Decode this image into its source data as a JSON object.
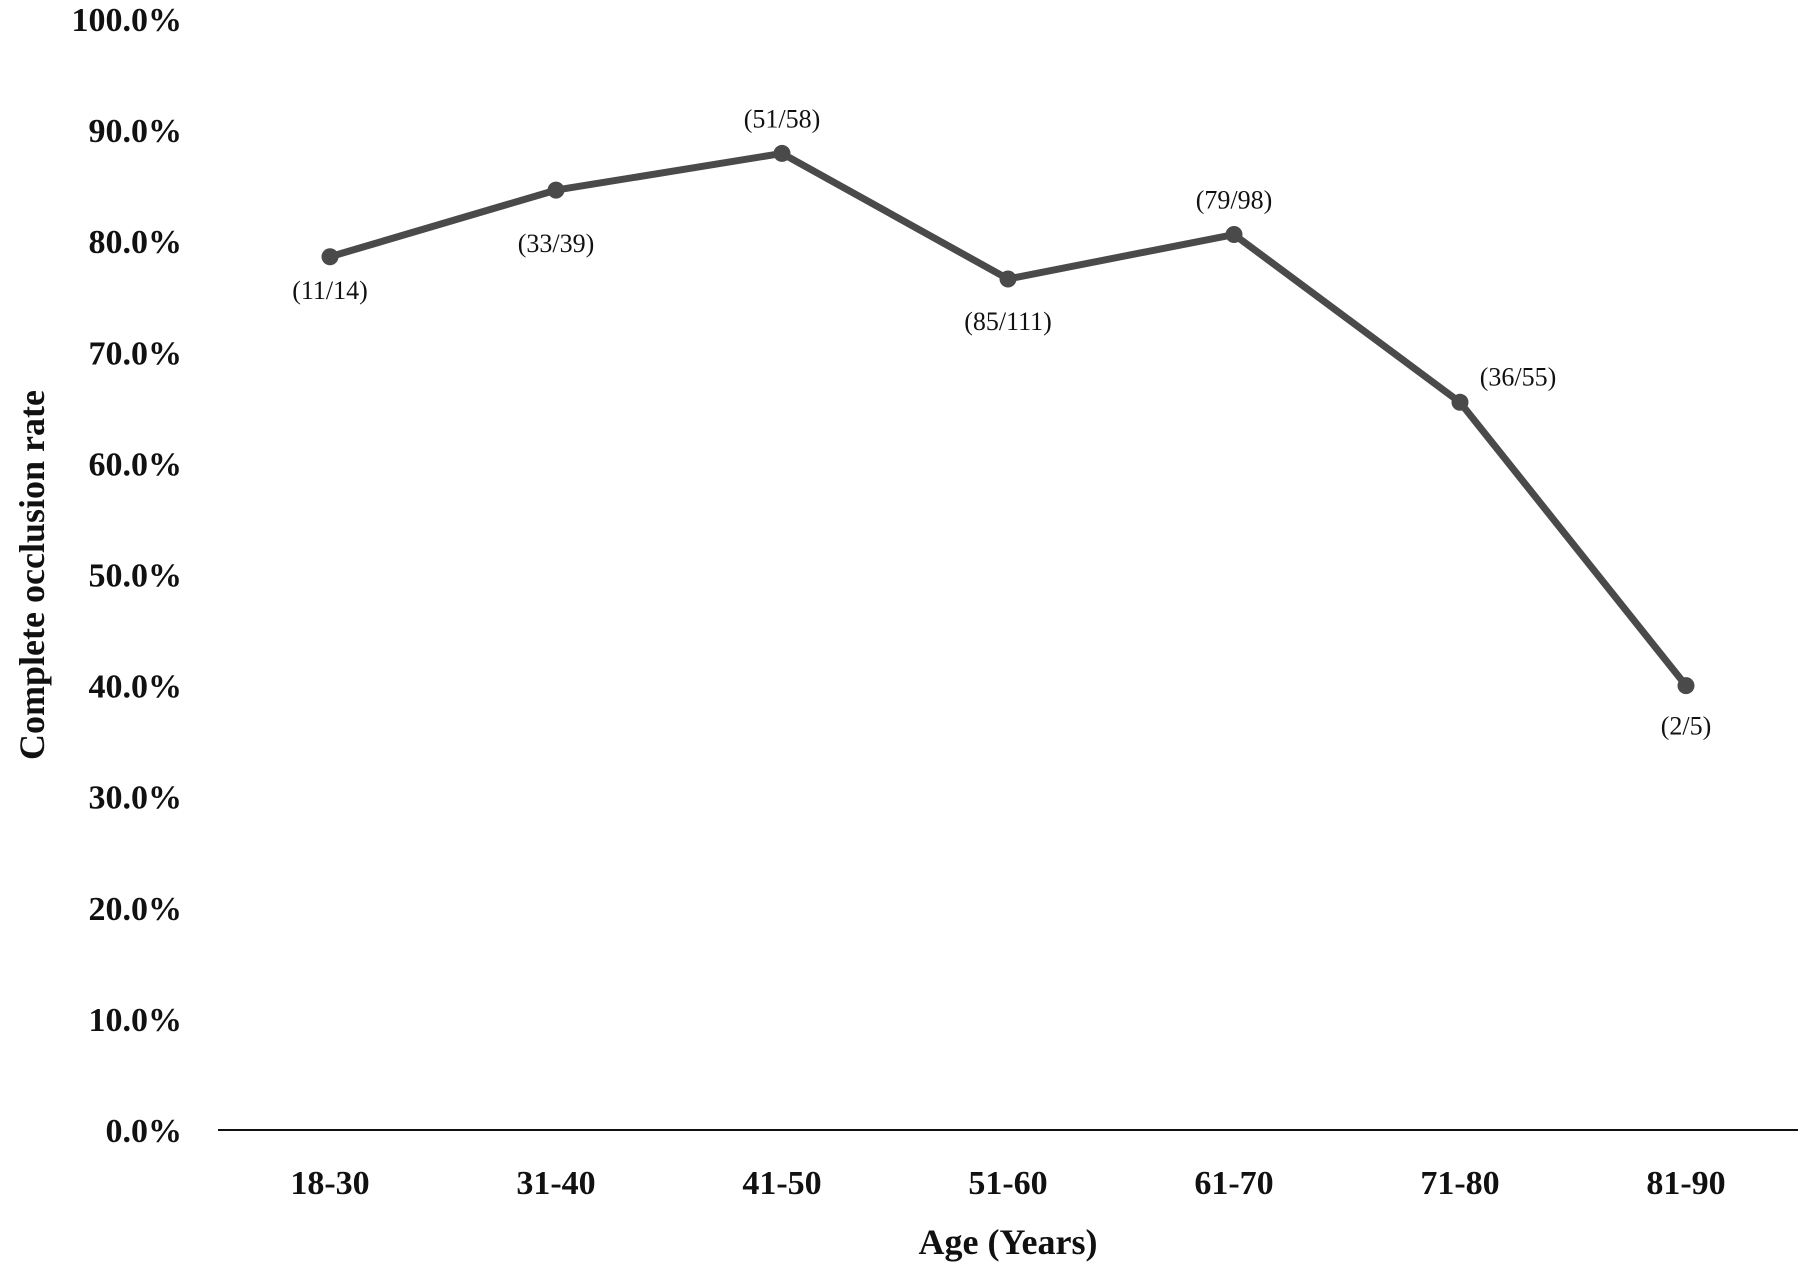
{
  "chart_data": {
    "type": "line",
    "title": "",
    "xlabel": "Age (Years)",
    "ylabel": "Complete occlusion rate",
    "categories": [
      "18-30",
      "31-40",
      "41-50",
      "51-60",
      "61-70",
      "71-80",
      "81-90"
    ],
    "series": [
      {
        "values": [
          78.6,
          84.6,
          87.9,
          76.6,
          80.6,
          65.5,
          40.0
        ],
        "data_labels": [
          "(11/14)",
          "(33/39)",
          "(51/58)",
          "(85/111)",
          "(79/98)",
          "(36/55)",
          "(2/5)"
        ]
      }
    ],
    "yticks": [
      "0.0%",
      "10.0%",
      "20.0%",
      "30.0%",
      "40.0%",
      "50.0%",
      "60.0%",
      "70.0%",
      "80.0%",
      "90.0%",
      "100.0%"
    ],
    "ylim": [
      0,
      100
    ],
    "grid": false,
    "legend": "none",
    "colors": {
      "line": "#4a4a4a",
      "axis": "#111111",
      "text": "#111111"
    }
  }
}
